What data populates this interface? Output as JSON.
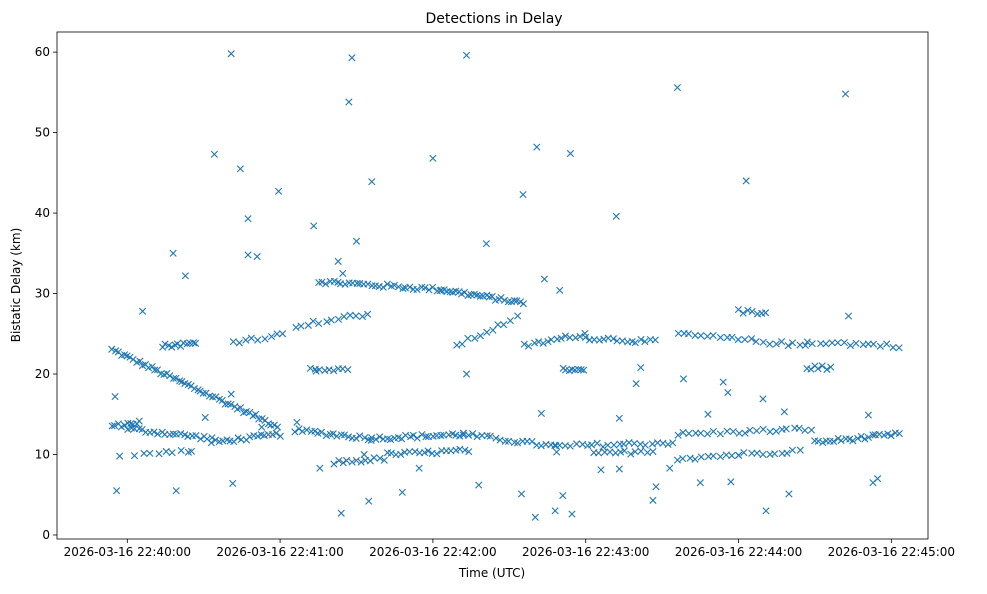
{
  "chart_data": {
    "type": "scatter",
    "title": "Detections in Delay",
    "xlabel": "Time (UTC)",
    "ylabel": "Bistatic Delay (km)",
    "marker": "x",
    "color": "#1f77b4",
    "grid": false,
    "legend": "none",
    "xlim": [
      -0.46,
      5.24
    ],
    "ylim": [
      -0.5,
      62.5
    ],
    "x_unit": "minutes after 2026-03-16 22:40:00",
    "xticks": [
      {
        "value": 0,
        "label": "2026-03-16 22:40:00"
      },
      {
        "value": 1,
        "label": "2026-03-16 22:41:00"
      },
      {
        "value": 2,
        "label": "2026-03-16 22:42:00"
      },
      {
        "value": 3,
        "label": "2026-03-16 22:43:00"
      },
      {
        "value": 4,
        "label": "2026-03-16 22:44:00"
      },
      {
        "value": 5,
        "label": "2026-03-16 22:45:00"
      }
    ],
    "yticks": [
      0,
      10,
      20,
      30,
      40,
      50,
      60
    ],
    "tracks": [
      {
        "x_start": -0.1,
        "x_end": 0.98,
        "y_start": 23.0,
        "y_end": 13.5,
        "step": 0.02
      },
      {
        "x_start": 1.25,
        "x_end": 2.05,
        "y_start": 31.5,
        "y_end": 30.5,
        "step": 0.025
      },
      {
        "x_start": 2.05,
        "x_end": 2.6,
        "y_start": 30.5,
        "y_end": 28.8,
        "step": 0.02
      },
      {
        "x_start": -0.1,
        "x_end": 0.08,
        "y_start": 13.5,
        "y_end": 14.0,
        "step": 0.02
      },
      {
        "x_start": 0.0,
        "x_end": 0.55,
        "y_start": 13.2,
        "y_end": 12.0,
        "step": 0.025
      },
      {
        "x_start": 0.55,
        "x_end": 1.0,
        "y_start": 11.5,
        "y_end": 12.5,
        "step": 0.025
      },
      {
        "x_start": 1.1,
        "x_end": 1.6,
        "y_start": 13.0,
        "y_end": 12.0,
        "step": 0.025
      },
      {
        "x_start": 1.6,
        "x_end": 2.2,
        "y_start": 12.0,
        "y_end": 12.5,
        "step": 0.025
      },
      {
        "x_start": 2.2,
        "x_end": 2.8,
        "y_start": 12.5,
        "y_end": 11.0,
        "step": 0.03
      },
      {
        "x_start": 2.8,
        "x_end": 3.6,
        "y_start": 11.0,
        "y_end": 11.5,
        "step": 0.035
      },
      {
        "x_start": 3.6,
        "x_end": 4.5,
        "y_start": 12.5,
        "y_end": 13.2,
        "step": 0.04
      },
      {
        "x_start": 4.5,
        "x_end": 5.05,
        "y_start": 11.5,
        "y_end": 12.5,
        "step": 0.025
      },
      {
        "x_start": 0.05,
        "x_end": 0.4,
        "y_start": 10.0,
        "y_end": 10.3,
        "step": 0.05
      },
      {
        "x_start": 1.35,
        "x_end": 1.7,
        "y_start": 9.0,
        "y_end": 9.5,
        "step": 0.03
      },
      {
        "x_start": 1.7,
        "x_end": 2.25,
        "y_start": 10.0,
        "y_end": 10.5,
        "step": 0.03
      },
      {
        "x_start": 3.05,
        "x_end": 3.45,
        "y_start": 10.0,
        "y_end": 10.5,
        "step": 0.035
      },
      {
        "x_start": 3.6,
        "x_end": 4.4,
        "y_start": 9.5,
        "y_end": 10.5,
        "step": 0.04
      },
      {
        "x_start": 0.23,
        "x_end": 0.45,
        "y_start": 23.5,
        "y_end": 23.8,
        "step": 0.02
      },
      {
        "x_start": 0.7,
        "x_end": 1.05,
        "y_start": 24.0,
        "y_end": 25.0,
        "step": 0.04
      },
      {
        "x_start": 1.1,
        "x_end": 1.6,
        "y_start": 26.0,
        "y_end": 27.5,
        "step": 0.04
      },
      {
        "x_start": 2.15,
        "x_end": 2.55,
        "y_start": 23.5,
        "y_end": 27.0,
        "step": 0.04
      },
      {
        "x_start": 2.6,
        "x_end": 3.0,
        "y_start": 23.5,
        "y_end": 25.0,
        "step": 0.03
      },
      {
        "x_start": 3.0,
        "x_end": 3.45,
        "y_start": 24.5,
        "y_end": 24.0,
        "step": 0.03
      },
      {
        "x_start": 3.6,
        "x_end": 4.45,
        "y_start": 25.0,
        "y_end": 23.5,
        "step": 0.04
      },
      {
        "x_start": 4.45,
        "x_end": 5.05,
        "y_start": 24.0,
        "y_end": 23.5,
        "step": 0.04
      },
      {
        "x_start": 2.85,
        "x_end": 3.0,
        "y_start": 20.5,
        "y_end": 20.5,
        "step": 0.02
      },
      {
        "x_start": 1.2,
        "x_end": 1.45,
        "y_start": 20.5,
        "y_end": 20.5,
        "step": 0.03
      },
      {
        "x_start": 4.45,
        "x_end": 4.6,
        "y_start": 20.8,
        "y_end": 20.8,
        "step": 0.025
      },
      {
        "x_start": 4.0,
        "x_end": 4.2,
        "y_start": 27.8,
        "y_end": 27.5,
        "step": 0.03
      }
    ],
    "points": [
      [
        0.1,
        27.8
      ],
      [
        0.3,
        35.0
      ],
      [
        0.38,
        32.2
      ],
      [
        0.57,
        47.3
      ],
      [
        0.68,
        59.8
      ],
      [
        0.74,
        45.5
      ],
      [
        0.79,
        39.3
      ],
      [
        0.79,
        34.8
      ],
      [
        0.85,
        34.6
      ],
      [
        0.99,
        42.7
      ],
      [
        1.22,
        38.4
      ],
      [
        1.38,
        34.0
      ],
      [
        1.41,
        32.5
      ],
      [
        1.45,
        53.8
      ],
      [
        1.47,
        59.3
      ],
      [
        1.5,
        36.5
      ],
      [
        1.6,
        43.9
      ],
      [
        2.0,
        46.8
      ],
      [
        2.22,
        59.6
      ],
      [
        2.35,
        36.2
      ],
      [
        2.59,
        42.3
      ],
      [
        2.68,
        48.2
      ],
      [
        2.73,
        31.8
      ],
      [
        2.83,
        30.4
      ],
      [
        2.9,
        47.4
      ],
      [
        3.2,
        39.6
      ],
      [
        3.6,
        55.6
      ],
      [
        4.05,
        44.0
      ],
      [
        4.7,
        54.8
      ],
      [
        4.72,
        27.2
      ],
      [
        -0.08,
        17.2
      ],
      [
        -0.05,
        9.8
      ],
      [
        -0.07,
        5.5
      ],
      [
        0.32,
        5.5
      ],
      [
        0.69,
        6.4
      ],
      [
        1.11,
        14.0
      ],
      [
        1.23,
        20.6
      ],
      [
        1.26,
        8.3
      ],
      [
        1.4,
        2.7
      ],
      [
        1.58,
        4.2
      ],
      [
        1.8,
        5.3
      ],
      [
        2.22,
        20.0
      ],
      [
        2.3,
        6.2
      ],
      [
        2.58,
        5.1
      ],
      [
        2.67,
        2.2
      ],
      [
        2.8,
        3.0
      ],
      [
        2.85,
        4.9
      ],
      [
        2.91,
        2.6
      ],
      [
        3.1,
        8.1
      ],
      [
        3.22,
        14.5
      ],
      [
        3.22,
        8.2
      ],
      [
        3.33,
        18.8
      ],
      [
        3.36,
        20.8
      ],
      [
        3.44,
        4.3
      ],
      [
        3.46,
        6.0
      ],
      [
        3.55,
        8.3
      ],
      [
        3.64,
        19.4
      ],
      [
        3.75,
        6.5
      ],
      [
        3.8,
        15.0
      ],
      [
        3.9,
        19.0
      ],
      [
        3.93,
        17.7
      ],
      [
        3.95,
        6.6
      ],
      [
        4.0,
        9.9
      ],
      [
        4.16,
        16.9
      ],
      [
        4.18,
        3.0
      ],
      [
        4.3,
        15.3
      ],
      [
        4.33,
        5.1
      ],
      [
        4.85,
        14.9
      ],
      [
        4.88,
        6.5
      ],
      [
        4.91,
        7.0
      ],
      [
        0.42,
        10.4
      ],
      [
        0.51,
        14.6
      ],
      [
        0.68,
        17.5
      ],
      [
        0.88,
        13.4
      ],
      [
        1.55,
        10.0
      ],
      [
        1.91,
        8.3
      ],
      [
        2.71,
        15.1
      ],
      [
        2.81,
        10.3
      ]
    ]
  }
}
